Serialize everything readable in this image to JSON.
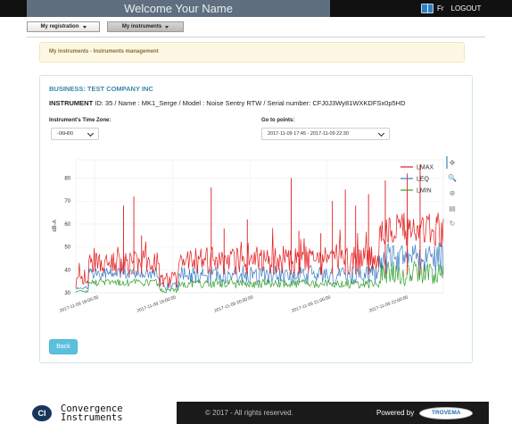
{
  "header": {
    "welcome": "Welcome  Your Name",
    "lang": "Fr",
    "logout": "LOGOUT"
  },
  "menu": {
    "registration": "My registration",
    "instruments": "My instruments"
  },
  "notice": "My instruments - Instruments management",
  "panel": {
    "business": "BUSINESS: TEST COMPANY INC",
    "instrument_label": "INSTRUMENT",
    "instrument_details": " ID: 35 / Name : MK1_Serge / Model : Noise Sentry RTW / Serial number: CFJ0J3Wy81WXKDFSx0p5HD",
    "timezone_label": "Instrument's Time Zone:",
    "timezone_value": "-06H00",
    "goto_label": "Go to points:",
    "goto_value": "2017-11-09 17:45 - 2017-11-09 22:30",
    "back_label": "Back"
  },
  "chart_data": {
    "type": "line",
    "ylabel": "dB-A",
    "ylim": [
      30,
      88
    ],
    "yticks": [
      30,
      40,
      50,
      60,
      70,
      80
    ],
    "x_start": "2017-11-09 17:45:00",
    "x_end": "2017-11-09 22:30:00",
    "xticks": [
      "2017-11-09 18:00:00",
      "2017-11-09 19:00:00",
      "2017-11-09 20:00:00",
      "2017-11-09 21:00:00",
      "2017-11-09 22:00:00"
    ],
    "series": [
      {
        "name": "LMAX",
        "color": "#e31a1c"
      },
      {
        "name": "LEQ",
        "color": "#3b7fc4"
      },
      {
        "name": "LMIN",
        "color": "#33a02c"
      }
    ],
    "segments": [
      {
        "from": "2017-11-09 17:45:00",
        "to": "2017-11-09 17:55:00",
        "lmax": [
          32,
          38
        ],
        "leq": [
          31,
          33
        ],
        "lmin": [
          30,
          31
        ]
      },
      {
        "from": "2017-11-09 17:55:00",
        "to": "2017-11-09 18:50:00",
        "lmax": [
          38,
          48
        ],
        "leq": [
          36,
          41
        ],
        "lmin": [
          33,
          36
        ]
      },
      {
        "from": "2017-11-09 18:50:00",
        "to": "2017-11-09 19:05:00",
        "lmax": [
          32,
          40
        ],
        "leq": [
          31,
          35
        ],
        "lmin": [
          30,
          32
        ]
      },
      {
        "from": "2017-11-09 19:05:00",
        "to": "2017-11-09 21:40:00",
        "lmax": [
          38,
          50
        ],
        "leq": [
          34,
          42
        ],
        "lmin": [
          32,
          36
        ]
      },
      {
        "from": "2017-11-09 21:40:00",
        "to": "2017-11-09 22:30:00",
        "lmax": [
          50,
          65
        ],
        "leq": [
          38,
          52
        ],
        "lmin": [
          33,
          44
        ]
      }
    ],
    "peaks": [
      {
        "t": "2017-11-09 18:22:00",
        "v": 68
      },
      {
        "t": "2017-11-09 18:30:00",
        "v": 72
      },
      {
        "t": "2017-11-09 18:36:00",
        "v": 55
      },
      {
        "t": "2017-11-09 19:30:00",
        "v": 76
      },
      {
        "t": "2017-11-09 19:40:00",
        "v": 58
      },
      {
        "t": "2017-11-09 19:58:00",
        "v": 62
      },
      {
        "t": "2017-11-09 20:32:00",
        "v": 80
      },
      {
        "t": "2017-11-09 20:38:00",
        "v": 57
      },
      {
        "t": "2017-11-09 20:55:00",
        "v": 56
      },
      {
        "t": "2017-11-09 21:04:00",
        "v": 70
      },
      {
        "t": "2017-11-09 21:14:00",
        "v": 75
      },
      {
        "t": "2017-11-09 21:22:00",
        "v": 68
      },
      {
        "t": "2017-11-09 21:32:00",
        "v": 73
      },
      {
        "t": "2017-11-09 21:45:00",
        "v": 79
      },
      {
        "t": "2017-11-09 22:02:00",
        "v": 82
      },
      {
        "t": "2017-11-09 22:12:00",
        "v": 86
      }
    ]
  },
  "toolbar": [
    {
      "icon": "pan-icon",
      "glyph": "✥"
    },
    {
      "icon": "zoom-icon",
      "glyph": "🔍"
    },
    {
      "icon": "zoom-reset-icon",
      "glyph": "⊕"
    },
    {
      "icon": "save-icon",
      "glyph": "▤"
    },
    {
      "icon": "refresh-icon",
      "glyph": "↻"
    }
  ],
  "footer": {
    "logo_mark": "CI",
    "brand_line1": "Convergence",
    "brand_line2": "Instruments",
    "copyright": "© 2017 - All rights reserved.",
    "powered_by": "Powered by",
    "partner": "TROVEMA"
  }
}
